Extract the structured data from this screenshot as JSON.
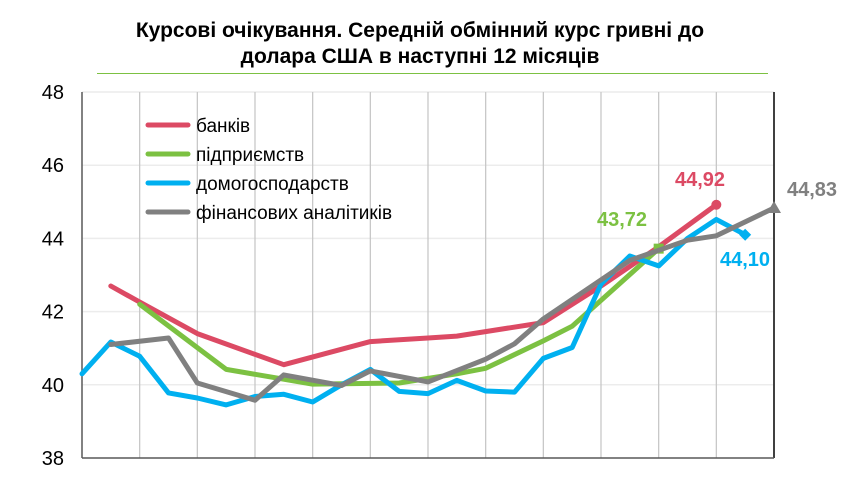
{
  "chart_data": {
    "type": "line",
    "title_lines": [
      "Курсові очікування. Середній обмінний курс гривні до",
      "долара США в наступні 12 місяців"
    ],
    "ylim": [
      38,
      48
    ],
    "yticks": [
      38,
      40,
      42,
      44,
      46,
      48
    ],
    "x_points": 25,
    "grid": "vertical and horizontal",
    "legend_position": "top-left",
    "series": [
      {
        "name": "банків",
        "color": "#dc4a64",
        "marker": "circle",
        "end_label": "44,92",
        "values": {
          "1": 42.7,
          "2": 42.26,
          "4": 41.4,
          "7": 40.55,
          "10": 41.18,
          "12": 41.28,
          "13": 41.33,
          "16": 41.7,
          "18": 42.7,
          "20": 43.77,
          "22": 44.92
        }
      },
      {
        "name": "підприємств",
        "color": "#7cc142",
        "marker": "square",
        "end_label": "43,72",
        "values": {
          "2": 42.2,
          "5": 40.42,
          "8": 40.02,
          "11": 40.05,
          "13": 40.3,
          "14": 40.45,
          "16": 41.2,
          "17": 41.6,
          "20": 43.72
        }
      },
      {
        "name": "домогосподарств",
        "color": "#00b0f0",
        "marker": "diamond",
        "end_label": "44,10",
        "values": {
          "0": 40.3,
          "1": 41.17,
          "2": 40.78,
          "3": 39.78,
          "4": 39.64,
          "5": 39.45,
          "6": 39.68,
          "7": 39.74,
          "8": 39.53,
          "9": 40.0,
          "10": 40.42,
          "11": 39.82,
          "12": 39.76,
          "13": 40.12,
          "14": 39.83,
          "15": 39.8,
          "16": 40.72,
          "17": 41.02,
          "18": 42.75,
          "19": 43.52,
          "20": 43.25,
          "21": 44.0,
          "22": 44.52,
          "23": 44.1
        }
      },
      {
        "name": "фінансових аналітиків",
        "color": "#808080",
        "marker": "triangle",
        "end_label": "44,83",
        "values": {
          "1": 41.1,
          "3": 41.28,
          "4": 40.05,
          "6": 39.58,
          "7": 40.27,
          "9": 39.98,
          "10": 40.38,
          "12": 40.08,
          "14": 40.7,
          "15": 41.12,
          "16": 41.8,
          "19": 43.4,
          "21": 43.95,
          "22": 44.07,
          "24": 44.83
        }
      }
    ]
  }
}
